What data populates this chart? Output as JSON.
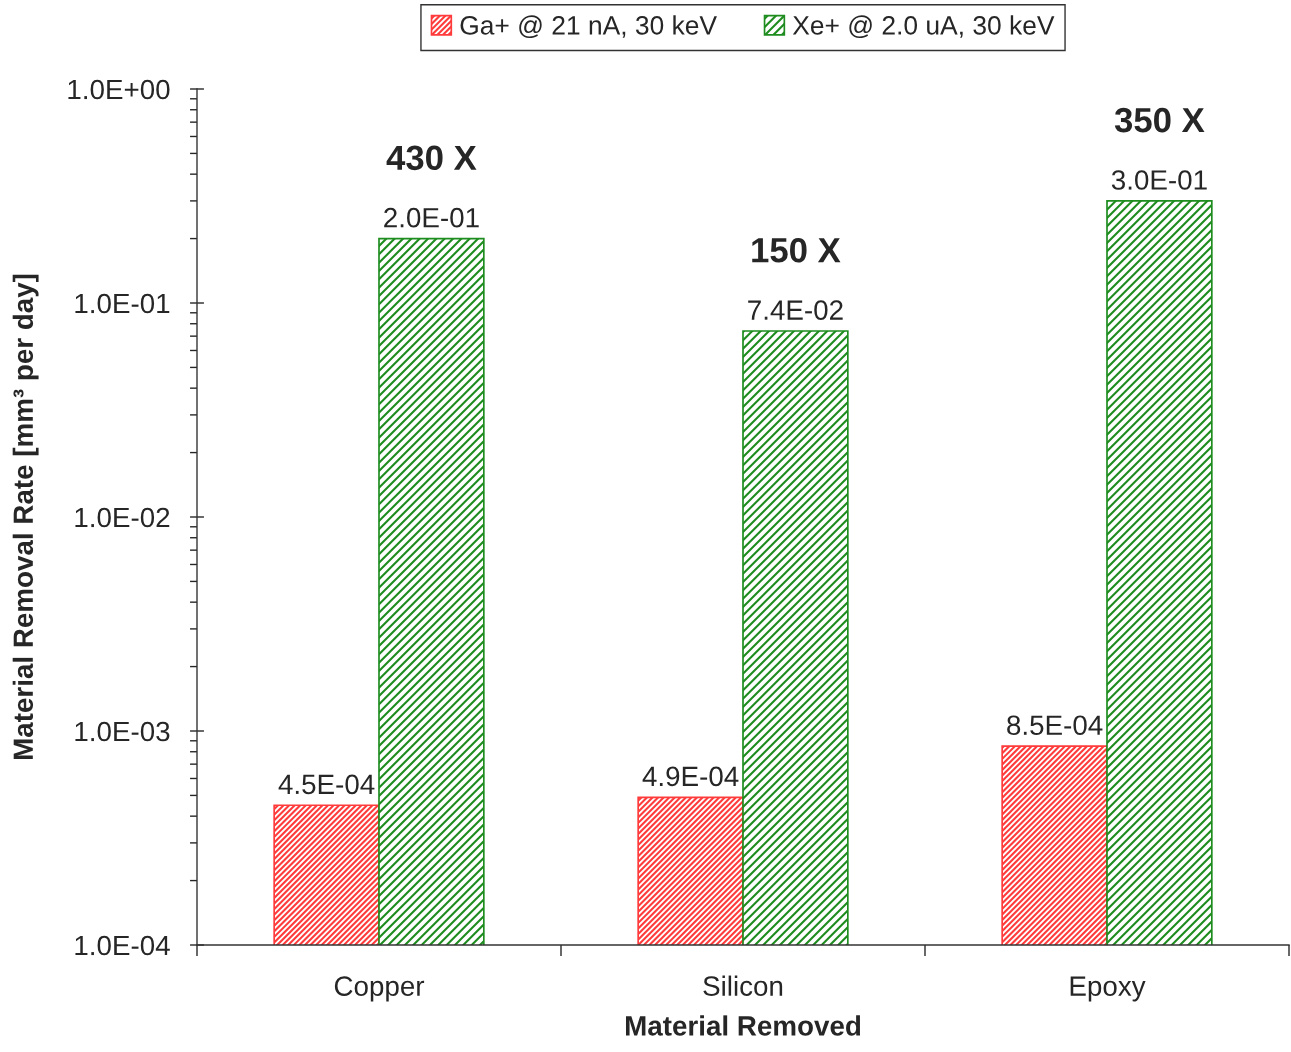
{
  "chart_data": {
    "type": "bar",
    "categories": [
      "Copper",
      "Silicon",
      "Epoxy"
    ],
    "series": [
      {
        "name": "Ga+ @ 21 nA, 30 keV",
        "color": "#ff3b3b",
        "values": [
          0.00045,
          0.00049,
          0.00085
        ],
        "value_labels": [
          "4.5E-04",
          "4.9E-04",
          "8.5E-04"
        ]
      },
      {
        "name": "Xe+ @ 2.0 uA, 30 keV",
        "color": "#1e8c1e",
        "values": [
          0.2,
          0.074,
          0.3
        ],
        "value_labels": [
          "2.0E-01",
          "7.4E-02",
          "3.0E-01"
        ]
      }
    ],
    "xlabel": "Material Removed",
    "ylabel": "Material Removal Rate [mm³ per day]",
    "log": true,
    "ylim": [
      0.0001,
      1
    ],
    "yticks": [
      {
        "value": 0.0001,
        "label": "1.0E-04"
      },
      {
        "value": 0.001,
        "label": "1.0E-03"
      },
      {
        "value": 0.01,
        "label": "1.0E-02"
      },
      {
        "value": 0.1,
        "label": "1.0E-01"
      },
      {
        "value": 1,
        "label": "1.0E+00"
      }
    ],
    "annotations": [
      "430 X",
      "150 X",
      "350 X"
    ],
    "legend": "top"
  }
}
